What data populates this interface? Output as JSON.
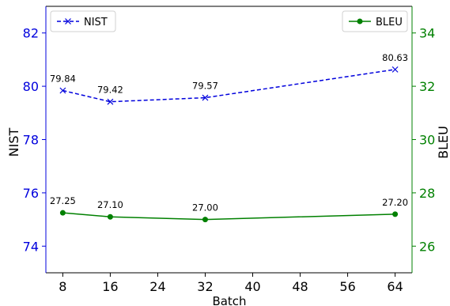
{
  "chart_data": {
    "type": "line",
    "xlabel": "Batch",
    "ylabel_left": "NIST",
    "ylabel_right": "BLEU",
    "xlim": [
      5.15,
      66.85
    ],
    "x_ticks": [
      8,
      16,
      24,
      32,
      40,
      48,
      56,
      64
    ],
    "ylim_left": [
      73.0,
      83.0
    ],
    "y_ticks_left": [
      74,
      76,
      78,
      80,
      82
    ],
    "ylim_right": [
      25.0,
      35.0
    ],
    "y_ticks_right": [
      26,
      28,
      30,
      32,
      34
    ],
    "grid": false,
    "series": [
      {
        "name": "NIST",
        "axis": "left",
        "color": "#0000dd",
        "marker": "x",
        "line": "dashed",
        "x": [
          8,
          16,
          32,
          64
        ],
        "y": [
          79.84,
          79.42,
          79.57,
          80.63
        ],
        "labels": [
          "79.84",
          "79.42",
          "79.57",
          "80.63"
        ],
        "legend_position": "top-left"
      },
      {
        "name": "BLEU",
        "axis": "right",
        "color": "#008000",
        "marker": "circle",
        "line": "solid",
        "x": [
          8,
          16,
          32,
          64
        ],
        "y": [
          27.25,
          27.1,
          27.0,
          27.2
        ],
        "labels": [
          "27.25",
          "27.10",
          "27.00",
          "27.20"
        ],
        "legend_position": "top-right"
      }
    ],
    "left_axis_color": "#0000dd",
    "right_axis_color": "#008000"
  }
}
